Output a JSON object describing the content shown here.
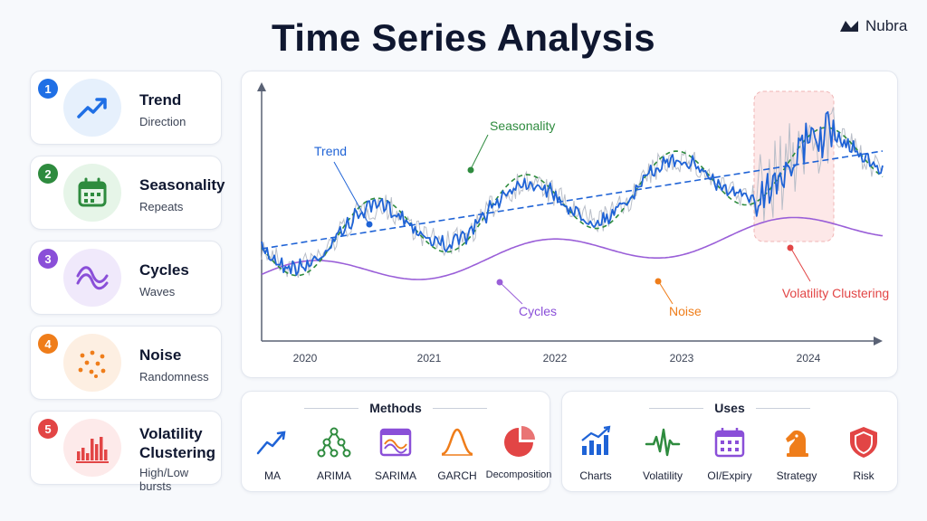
{
  "header": {
    "title": "Time Series Analysis",
    "brand": "Nubra"
  },
  "components": [
    {
      "number": "1",
      "name": "Trend",
      "desc": "Direction",
      "icon": "trend-up-icon",
      "color": "#1f6fe5",
      "bg": "#e6f0fc"
    },
    {
      "number": "2",
      "name": "Seasonality",
      "desc": "Repeats",
      "icon": "calendar-icon",
      "color": "#2e8b3e",
      "bg": "#e6f5e8"
    },
    {
      "number": "3",
      "name": "Cycles",
      "desc": "Waves",
      "icon": "wave-icon",
      "color": "#8a4fd8",
      "bg": "#f0e9fb"
    },
    {
      "number": "4",
      "name": "Noise",
      "desc": "Randomness",
      "icon": "dots-icon",
      "color": "#ef7d1a",
      "bg": "#fdefe2"
    },
    {
      "number": "5",
      "name": "Volatility Clustering",
      "desc": "High/Low bursts",
      "icon": "bars-icon",
      "color": "#e24545",
      "bg": "#fdeaea"
    }
  ],
  "chart": {
    "years": [
      "2020",
      "2021",
      "2022",
      "2023",
      "2024"
    ],
    "labels": {
      "trend": "Trend",
      "seasonality": "Seasonality",
      "cycles": "Cycles",
      "noise": "Noise",
      "volatility": "Volatility Clustering"
    },
    "colors": {
      "series": "#1f63d6",
      "trend": "#1f63d6",
      "seasonality": "#2e8b3e",
      "cycles": "#9a5fd8",
      "noise": "#ef7d1a",
      "volatility": "#e24545",
      "shade": "#fde8e8"
    }
  },
  "methods": {
    "title": "Methods",
    "items": [
      {
        "label": "MA",
        "icon": "line-up-icon",
        "color": "#1f63d6"
      },
      {
        "label": "ARIMA",
        "icon": "network-icon",
        "color": "#2e8b3e"
      },
      {
        "label": "SARIMA",
        "icon": "wave-calendar-icon",
        "color": "#8a4fd8"
      },
      {
        "label": "GARCH",
        "icon": "bell-curve-icon",
        "color": "#ef7d1a"
      },
      {
        "label": "Decomposition",
        "icon": "pie-icon",
        "color": "#e24545"
      }
    ]
  },
  "uses": {
    "title": "Uses",
    "items": [
      {
        "label": "Charts",
        "icon": "bar-chart-icon",
        "color": "#1f63d6"
      },
      {
        "label": "Volatility",
        "icon": "pulse-icon",
        "color": "#2e8b3e"
      },
      {
        "label": "OI/Expiry",
        "icon": "calendar-grid-icon",
        "color": "#8a4fd8"
      },
      {
        "label": "Strategy",
        "icon": "chess-knight-icon",
        "color": "#ef7d1a"
      },
      {
        "label": "Risk",
        "icon": "shield-icon",
        "color": "#e24545"
      }
    ]
  }
}
